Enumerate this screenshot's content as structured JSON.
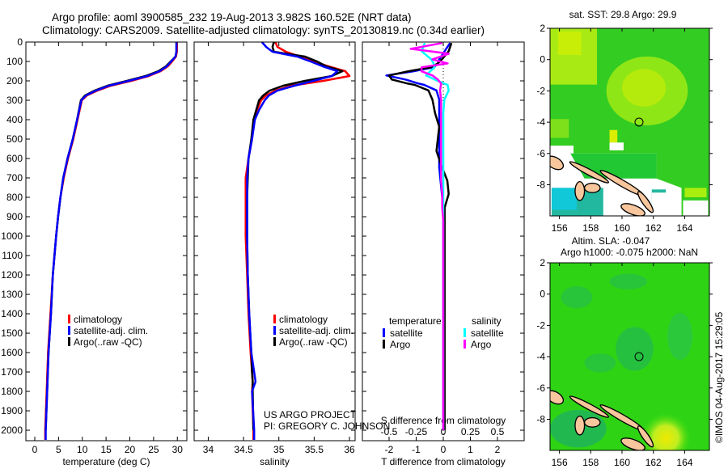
{
  "title": {
    "line1": "Argo profile: aoml 3900585_232 19-Aug-2013 3.982S 160.52E (NRT data)",
    "line2": "Climatology: CARS2009. Satellite-adjusted climatology: synTS_20130819.nc (0.34d earlier)"
  },
  "credit": {
    "project": "US ARGO PROJECT",
    "pi": "PI: GREGORY C. JOHNSON",
    "timestamp": "©IMOS 04-Aug-2017 15:29:05"
  },
  "colors": {
    "climatology": "#ff0000",
    "satellite": "#0000ff",
    "argo": "#000000",
    "sal_satellite": "#00ffff",
    "sal_argo": "#ff00ff"
  },
  "chart_data": [
    {
      "type": "line",
      "id": "temperature",
      "xlabel": "temperature (deg C)",
      "ylabel": "",
      "xlim": [
        -1.87,
        32.0
      ],
      "ylim": [
        2054,
        0
      ],
      "xticks": [
        0,
        5,
        10,
        15,
        20,
        25,
        30
      ],
      "yticks": [
        0,
        100,
        200,
        300,
        400,
        500,
        600,
        700,
        800,
        900,
        1000,
        1100,
        1200,
        1300,
        1400,
        1500,
        1600,
        1700,
        1800,
        1900,
        2000
      ],
      "legend": [
        "climatology",
        "satellite-adj. clim.",
        "Argo(..raw -QC)"
      ],
      "series": [
        {
          "name": "climatology",
          "color": "#ff0000",
          "depth": [
            0,
            50,
            75,
            100,
            125,
            150,
            175,
            200,
            225,
            250,
            275,
            300,
            400,
            500,
            600,
            700,
            800,
            900,
            1000,
            1200,
            1400,
            1600,
            1800,
            2000,
            2050
          ],
          "values": [
            29.9,
            29.9,
            29.7,
            28.9,
            28.0,
            26.5,
            24.0,
            20.3,
            16.0,
            13.2,
            11.0,
            9.9,
            9.0,
            8.1,
            7.0,
            6.1,
            5.4,
            4.9,
            4.5,
            3.8,
            3.3,
            2.8,
            2.5,
            2.2,
            2.2
          ]
        },
        {
          "name": "Argo(..raw -QC)",
          "color": "#000000",
          "depth": [
            0,
            50,
            75,
            100,
            125,
            150,
            175,
            200,
            225,
            250,
            275,
            300,
            400,
            500,
            600,
            700,
            800,
            900,
            1000,
            1200,
            1400,
            1600,
            1800,
            2000
          ],
          "values": [
            29.8,
            29.8,
            29.6,
            28.6,
            27.6,
            26.0,
            23.3,
            19.4,
            15.3,
            12.6,
            10.6,
            9.7,
            8.9,
            8.0,
            6.9,
            6.0,
            5.4,
            4.9,
            4.5,
            3.8,
            3.4,
            2.9,
            2.6,
            2.3
          ]
        },
        {
          "name": "satellite-adj. clim.",
          "color": "#0000ff",
          "depth": [
            0,
            50,
            75,
            100,
            125,
            150,
            175,
            200,
            225,
            250,
            275,
            300,
            400,
            500,
            600,
            700,
            800,
            900,
            1000,
            1200,
            1400,
            1600,
            1800,
            2000,
            2050
          ],
          "values": [
            29.8,
            29.8,
            29.6,
            28.7,
            27.8,
            26.3,
            23.7,
            19.8,
            15.6,
            12.9,
            10.8,
            9.8,
            8.9,
            8.0,
            6.9,
            6.0,
            5.4,
            4.9,
            4.5,
            3.8,
            3.4,
            2.9,
            2.6,
            2.3,
            2.3
          ]
        }
      ]
    },
    {
      "type": "line",
      "id": "salinity",
      "xlabel": "salinity",
      "xlim": [
        33.8,
        36.08
      ],
      "ylim": [
        2054,
        0
      ],
      "xticks": [
        34,
        34.5,
        35,
        35.5,
        36
      ],
      "xticklabels": [
        "34",
        "34.5",
        "35",
        "35.5",
        "36"
      ],
      "legend": [
        "climatology",
        "satellite-adj. clim.",
        "Argo(..raw -QC)"
      ],
      "series": [
        {
          "name": "climatology",
          "color": "#ff0000",
          "depth": [
            0,
            25,
            50,
            75,
            100,
            125,
            150,
            175,
            200,
            225,
            250,
            275,
            300,
            350,
            400,
            500,
            600,
            700,
            800,
            1000,
            1200,
            1400,
            1600,
            1700,
            1750,
            1800,
            2000,
            2050
          ],
          "values": [
            34.95,
            34.98,
            35.1,
            35.3,
            35.49,
            35.7,
            35.94,
            36.0,
            35.63,
            35.18,
            34.95,
            34.82,
            34.75,
            34.69,
            34.65,
            34.62,
            34.57,
            34.53,
            34.53,
            34.53,
            34.55,
            34.57,
            34.6,
            34.62,
            34.63,
            34.62,
            34.64,
            34.64
          ]
        },
        {
          "name": "Argo(..raw -QC)",
          "color": "#000000",
          "depth": [
            0,
            25,
            50,
            75,
            100,
            125,
            150,
            175,
            200,
            225,
            250,
            275,
            300,
            350,
            400,
            500,
            600,
            700,
            800,
            1000,
            1200,
            1400,
            1600,
            1700,
            1750,
            1800,
            2000
          ],
          "values": [
            34.93,
            34.91,
            34.93,
            35.37,
            35.54,
            35.67,
            35.9,
            35.75,
            35.37,
            35.06,
            34.87,
            34.78,
            34.72,
            34.68,
            34.64,
            34.61,
            34.57,
            34.56,
            34.55,
            34.55,
            34.56,
            34.58,
            34.61,
            34.62,
            34.63,
            34.63,
            34.64
          ]
        },
        {
          "name": "satellite-adj. clim.",
          "color": "#0000ff",
          "depth": [
            0,
            25,
            50,
            75,
            100,
            125,
            150,
            175,
            200,
            225,
            250,
            275,
            300,
            350,
            400,
            500,
            600,
            700,
            800,
            1000,
            1200,
            1400,
            1600,
            1700,
            1750,
            1800,
            2000,
            2050
          ],
          "values": [
            34.76,
            34.82,
            34.91,
            35.26,
            35.45,
            35.62,
            35.83,
            35.75,
            35.49,
            35.22,
            34.98,
            34.86,
            34.8,
            34.72,
            34.66,
            34.62,
            34.57,
            34.55,
            34.55,
            34.55,
            34.56,
            34.58,
            34.61,
            34.65,
            34.67,
            34.62,
            34.65,
            34.65
          ]
        }
      ]
    },
    {
      "type": "line",
      "id": "difference",
      "xlabel": "T difference from climatology",
      "xlabel2": "S difference from climatology",
      "xlim": [
        -2.985,
        2.985
      ],
      "xlim_s": [
        -0.746,
        0.746
      ],
      "ylim": [
        2054,
        0
      ],
      "xticks": [
        -2,
        -1,
        0,
        1,
        2
      ],
      "xticks_s": [
        -0.5,
        -0.25,
        0,
        0.25,
        0.5
      ],
      "xticklabels_s": [
        "-0.5",
        "-0.25",
        "0",
        "0.25",
        "0.5"
      ],
      "legend": {
        "temperature": "temperature",
        "salinity": "salinity",
        "satellite": "satellite",
        "argo": "Argo"
      },
      "series": [
        {
          "name": "T satellite",
          "var": "T",
          "color": "#0000ff",
          "depth": [
            5,
            47,
            89,
            110,
            130,
            151,
            172,
            193,
            214,
            221,
            249,
            297,
            367,
            436,
            561,
            644,
            714,
            783,
            853,
            922,
            1200,
            1600,
            2000
          ],
          "values": [
            0.25,
            0.05,
            -0.15,
            -0.2,
            -0.35,
            -1.1,
            -2.1,
            -1.4,
            -0.9,
            -0.7,
            -0.25,
            -0.15,
            -0.15,
            -0.15,
            -0.15,
            -0.15,
            -0.1,
            -0.05,
            0,
            0,
            0,
            0,
            0
          ]
        },
        {
          "name": "T Argo",
          "var": "T",
          "color": "#000000",
          "depth": [
            5,
            47,
            89,
            110,
            130,
            151,
            172,
            193,
            214,
            221,
            249,
            297,
            367,
            436,
            561,
            644,
            714,
            783,
            853,
            922,
            1200,
            1600,
            2000
          ],
          "values": [
            0.3,
            0.2,
            -0.05,
            -0.2,
            -0.45,
            -1.3,
            -2.0,
            -1.9,
            -1.3,
            -1.05,
            -0.55,
            -0.4,
            -0.3,
            -0.15,
            -0.25,
            -0.05,
            0.15,
            0.2,
            0.05,
            0.05,
            0.05,
            0.05,
            0.05
          ]
        },
        {
          "name": "S satellite",
          "var": "S",
          "color": "#00ffff",
          "depth": [
            5,
            47,
            89,
            110,
            130,
            151,
            172,
            193,
            214,
            221,
            249,
            297,
            367,
            436,
            561,
            644,
            714,
            783,
            853,
            922,
            1200,
            1600,
            2000
          ],
          "values": [
            -0.17,
            -0.2,
            -0.11,
            -0.09,
            -0.08,
            -0.12,
            -0.16,
            -0.08,
            0.01,
            0.04,
            0.05,
            0.01,
            0,
            0,
            0,
            0,
            0,
            0,
            0,
            0,
            0,
            0,
            0
          ]
        },
        {
          "name": "S Argo",
          "var": "S",
          "color": "#ff00ff",
          "depth": [
            5,
            35,
            60,
            89,
            110,
            130,
            151,
            172,
            193,
            214,
            249,
            297,
            367,
            436,
            561,
            644,
            714,
            783,
            853,
            922,
            1200,
            1600,
            2000
          ],
          "values": [
            -0.01,
            -0.3,
            0.05,
            -0.1,
            0.04,
            -0.2,
            -0.2,
            -0.1,
            -0.05,
            -0.02,
            -0.03,
            -0.02,
            -0.02,
            -0.02,
            -0.02,
            -0.02,
            -0.02,
            -0.01,
            -0.01,
            0,
            0,
            0,
            0
          ]
        }
      ]
    }
  ],
  "maps": [
    {
      "title": "sat. SST: 29.8 Argo: 29.9",
      "lon_ticks": [
        "156",
        "158",
        "160",
        "162",
        "164"
      ],
      "lat_ticks": [
        "2",
        "0",
        "-2",
        "-4",
        "-6",
        "-8"
      ],
      "argo_position": {
        "lon": 160.52,
        "lat": -3.982
      }
    },
    {
      "title1": "Altim. SLA: -0.047",
      "title2": "Argo h1000: -0.075 h2000: NaN",
      "lon_ticks": [
        "156",
        "158",
        "160",
        "162",
        "164"
      ],
      "lat_ticks": [
        "2",
        "0",
        "-2",
        "-4",
        "-6",
        "-8"
      ],
      "argo_position": {
        "lon": 160.52,
        "lat": -3.982
      }
    }
  ]
}
